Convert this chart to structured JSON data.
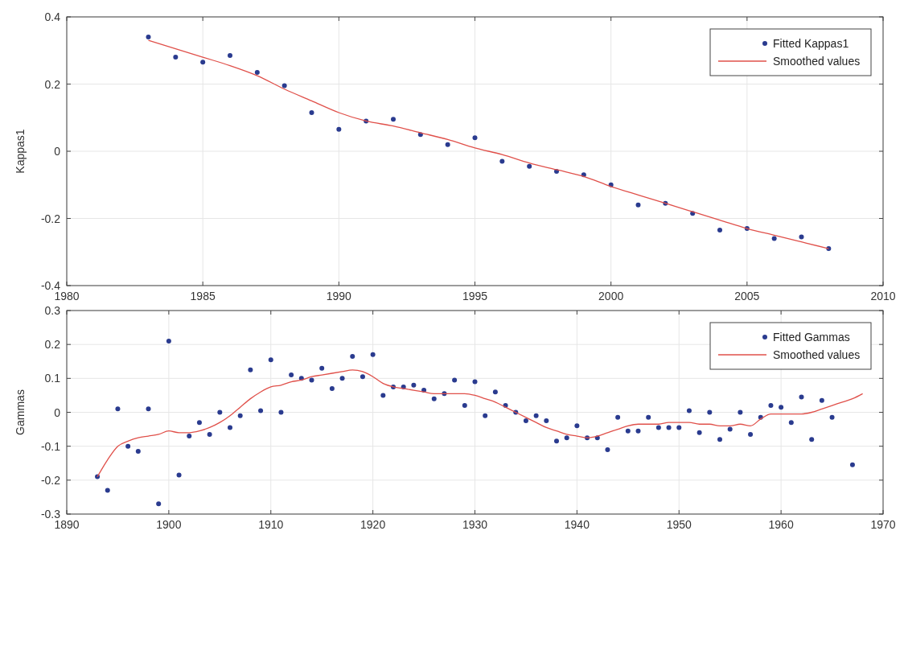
{
  "chart_data": [
    {
      "type": "scatter",
      "ylabel": "Kappas1",
      "xlim": [
        1980,
        2010
      ],
      "xticks": [
        1980,
        1985,
        1990,
        1995,
        2000,
        2005,
        2010
      ],
      "ylim": [
        -0.4,
        0.4
      ],
      "yticks": [
        -0.4,
        -0.2,
        0,
        0.2,
        0.4
      ],
      "grid": true,
      "legend": "top right",
      "series": [
        {
          "name": "Fitted Kappas1",
          "marker": "circle",
          "color": "#2a3b8f",
          "x": [
            1983,
            1984,
            1985,
            1986,
            1987,
            1988,
            1989,
            1990,
            1991,
            1992,
            1993,
            1994,
            1995,
            1996,
            1997,
            1998,
            1999,
            2000,
            2001,
            2002,
            2003,
            2004,
            2005,
            2006,
            2007,
            2008
          ],
          "values": [
            0.34,
            0.28,
            0.265,
            0.285,
            0.235,
            0.195,
            0.115,
            0.065,
            0.09,
            0.095,
            0.05,
            0.02,
            0.04,
            -0.03,
            -0.045,
            -0.06,
            -0.07,
            -0.1,
            -0.16,
            -0.155,
            -0.185,
            -0.235,
            -0.23,
            -0.26,
            -0.255,
            -0.29
          ]
        },
        {
          "name": "Smoothed values",
          "type": "line",
          "line_style": "solid",
          "color": "#e0504a",
          "x": [
            1983,
            1984,
            1985,
            1986,
            1987,
            1988,
            1989,
            1990,
            1991,
            1992,
            1993,
            1994,
            1995,
            1996,
            1997,
            1998,
            1999,
            2000,
            2001,
            2002,
            2003,
            2004,
            2005,
            2006,
            2007,
            2008
          ],
          "values": [
            0.33,
            0.305,
            0.28,
            0.255,
            0.225,
            0.185,
            0.15,
            0.115,
            0.09,
            0.075,
            0.055,
            0.035,
            0.01,
            -0.01,
            -0.035,
            -0.055,
            -0.075,
            -0.105,
            -0.13,
            -0.155,
            -0.18,
            -0.205,
            -0.23,
            -0.25,
            -0.27,
            -0.29
          ]
        }
      ]
    },
    {
      "type": "scatter",
      "ylabel": "Gammas",
      "xlim": [
        1890,
        1970
      ],
      "xticks": [
        1890,
        1900,
        1910,
        1920,
        1930,
        1940,
        1950,
        1960,
        1970
      ],
      "ylim": [
        -0.3,
        0.3
      ],
      "yticks": [
        -0.3,
        -0.2,
        -0.1,
        0,
        0.1,
        0.2,
        0.3
      ],
      "grid": true,
      "legend": "top right",
      "series": [
        {
          "name": "Fitted Gammas",
          "marker": "circle",
          "color": "#2a3b8f",
          "x": [
            1893,
            1894,
            1895,
            1896,
            1897,
            1898,
            1899,
            1900,
            1901,
            1902,
            1903,
            1904,
            1905,
            1906,
            1907,
            1908,
            1909,
            1910,
            1911,
            1912,
            1913,
            1914,
            1915,
            1916,
            1917,
            1918,
            1919,
            1920,
            1921,
            1922,
            1923,
            1924,
            1925,
            1926,
            1927,
            1928,
            1929,
            1930,
            1931,
            1932,
            1933,
            1934,
            1935,
            1936,
            1937,
            1938,
            1939,
            1940,
            1941,
            1942,
            1943,
            1944,
            1945,
            1946,
            1947,
            1948,
            1949,
            1950,
            1951,
            1952,
            1953,
            1954,
            1955,
            1956,
            1957,
            1958,
            1959,
            1960,
            1961,
            1962,
            1963,
            1964,
            1965,
            1967
          ],
          "values": [
            -0.19,
            -0.23,
            0.01,
            -0.1,
            -0.115,
            0.01,
            -0.27,
            0.21,
            -0.185,
            -0.07,
            -0.03,
            -0.065,
            0.0,
            -0.045,
            -0.01,
            0.125,
            0.005,
            0.155,
            0.0,
            0.11,
            0.1,
            0.095,
            0.13,
            0.07,
            0.1,
            0.165,
            0.105,
            0.17,
            0.05,
            0.075,
            0.075,
            0.08,
            0.065,
            0.04,
            0.055,
            0.095,
            0.02,
            0.09,
            -0.01,
            0.06,
            0.02,
            0.0,
            -0.025,
            -0.01,
            -0.025,
            -0.085,
            -0.075,
            -0.04,
            -0.075,
            -0.075,
            -0.11,
            -0.015,
            -0.055,
            -0.055,
            -0.015,
            -0.045,
            -0.045,
            -0.045,
            0.005,
            -0.06,
            0.0,
            -0.08,
            -0.05,
            0.0,
            -0.065,
            -0.015,
            0.02,
            0.015,
            -0.03,
            0.045,
            -0.08,
            0.035,
            -0.015,
            -0.155
          ]
        },
        {
          "name": "Smoothed values",
          "type": "line",
          "line_style": "solid",
          "color": "#e0504a",
          "x": [
            1893,
            1894,
            1895,
            1896,
            1897,
            1898,
            1899,
            1900,
            1901,
            1902,
            1903,
            1904,
            1905,
            1906,
            1907,
            1908,
            1909,
            1910,
            1911,
            1912,
            1913,
            1914,
            1915,
            1916,
            1917,
            1918,
            1919,
            1920,
            1921,
            1922,
            1923,
            1924,
            1925,
            1926,
            1927,
            1928,
            1929,
            1930,
            1931,
            1932,
            1933,
            1934,
            1935,
            1936,
            1937,
            1938,
            1939,
            1940,
            1941,
            1942,
            1943,
            1944,
            1945,
            1946,
            1947,
            1948,
            1949,
            1950,
            1951,
            1952,
            1953,
            1954,
            1955,
            1956,
            1957,
            1958,
            1959,
            1960,
            1961,
            1962,
            1963,
            1964,
            1965,
            1966,
            1967,
            1968
          ],
          "values": [
            -0.19,
            -0.14,
            -0.1,
            -0.085,
            -0.075,
            -0.07,
            -0.065,
            -0.055,
            -0.06,
            -0.06,
            -0.055,
            -0.045,
            -0.03,
            -0.01,
            0.015,
            0.04,
            0.06,
            0.075,
            0.08,
            0.09,
            0.095,
            0.105,
            0.11,
            0.115,
            0.12,
            0.125,
            0.12,
            0.105,
            0.085,
            0.075,
            0.07,
            0.065,
            0.06,
            0.055,
            0.055,
            0.055,
            0.055,
            0.05,
            0.04,
            0.03,
            0.015,
            0.0,
            -0.015,
            -0.03,
            -0.045,
            -0.055,
            -0.065,
            -0.07,
            -0.075,
            -0.07,
            -0.06,
            -0.05,
            -0.04,
            -0.035,
            -0.035,
            -0.035,
            -0.03,
            -0.03,
            -0.03,
            -0.035,
            -0.035,
            -0.04,
            -0.04,
            -0.035,
            -0.04,
            -0.02,
            -0.005,
            -0.005,
            -0.005,
            -0.005,
            0.0,
            0.01,
            0.02,
            0.03,
            0.04,
            0.055
          ]
        }
      ]
    }
  ]
}
